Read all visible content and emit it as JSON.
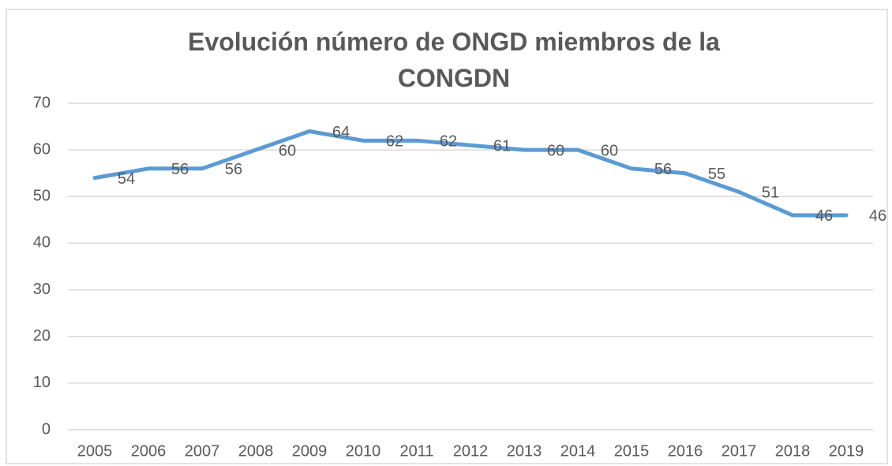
{
  "chart_data": {
    "type": "line",
    "title": "Evolución número de ONGD miembros de la CONGDN",
    "categories": [
      "2005",
      "2006",
      "2007",
      "2008",
      "2009",
      "2010",
      "2011",
      "2012",
      "2013",
      "2014",
      "2015",
      "2016",
      "2017",
      "2018",
      "2019"
    ],
    "series": [
      {
        "name": "ONGD miembros",
        "color": "#5b9bd5",
        "values": [
          54,
          56,
          56,
          60,
          64,
          62,
          62,
          61,
          60,
          60,
          56,
          55,
          51,
          46,
          46
        ]
      }
    ],
    "ylim": [
      0,
      70
    ],
    "yticks": [
      0,
      10,
      20,
      30,
      40,
      50,
      60,
      70
    ],
    "grid": true,
    "legend": false
  }
}
